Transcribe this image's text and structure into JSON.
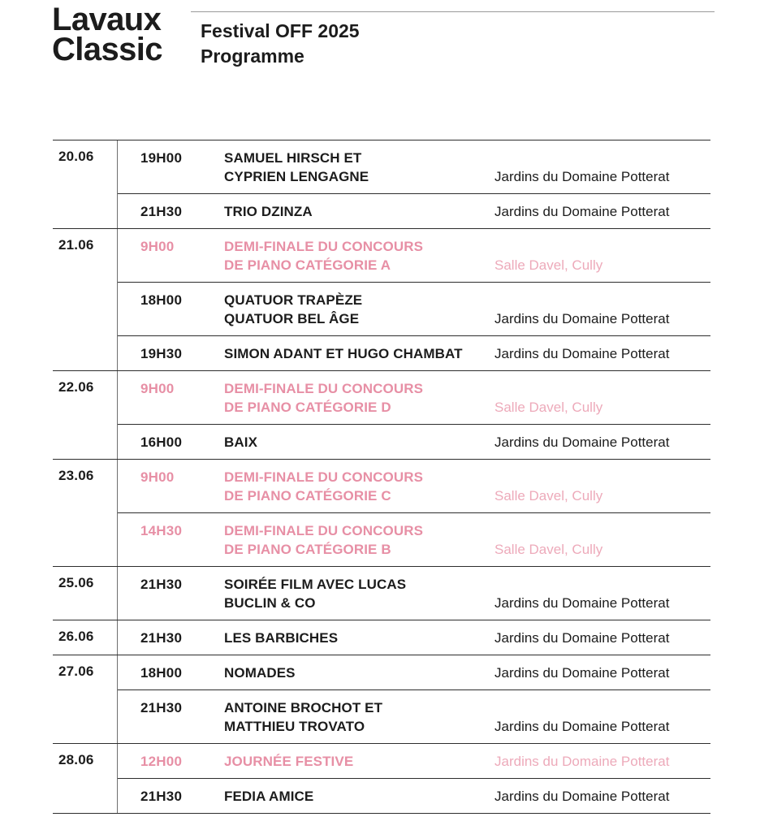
{
  "brand": {
    "logo_line1": "Lavaux",
    "logo_line2": "Classic"
  },
  "header": {
    "title_line1": "Festival OFF 2025",
    "title_line2": "Programme"
  },
  "colors": {
    "text": "#1c1c1c",
    "pink_strong": "#e78fa5",
    "pink_soft": "#edaaba",
    "rule_dark": "#2d2d2d",
    "rule_gray": "#6e6e6e",
    "rule_light": "#9a9a9a"
  },
  "schedule": {
    "groups": [
      {
        "date": "20.06",
        "rows": [
          {
            "time": "19H00",
            "name_lines": [
              "SAMUEL HIRSCH ET",
              "CYPRIEN LENGAGNE"
            ],
            "venue": "Jardins du Domaine Potterat",
            "highlight": false
          },
          {
            "time": "21H30",
            "name_lines": [
              "TRIO DZINZA"
            ],
            "venue": "Jardins du Domaine Potterat",
            "highlight": false
          }
        ]
      },
      {
        "date": "21.06",
        "rows": [
          {
            "time": "9H00",
            "name_lines": [
              "DEMI-FINALE DU CONCOURS",
              "DE PIANO CATÉGORIE A"
            ],
            "venue": "Salle Davel, Cully",
            "highlight": true
          },
          {
            "time": "18H00",
            "name_lines": [
              "QUATUOR TRAPÈZE",
              "QUATUOR BEL ÂGE"
            ],
            "venue": "Jardins du Domaine Potterat",
            "highlight": false
          },
          {
            "time": "19H30",
            "name_lines": [
              "SIMON ADANT ET HUGO CHAMBAT"
            ],
            "venue": "Jardins du Domaine Potterat",
            "highlight": false
          }
        ]
      },
      {
        "date": "22.06",
        "rows": [
          {
            "time": "9H00",
            "name_lines": [
              "DEMI-FINALE DU CONCOURS",
              "DE PIANO CATÉGORIE D"
            ],
            "venue": "Salle Davel, Cully",
            "highlight": true
          },
          {
            "time": "16H00",
            "name_lines": [
              "BAIX"
            ],
            "venue": "Jardins du Domaine Potterat",
            "highlight": false
          }
        ]
      },
      {
        "date": "23.06",
        "rows": [
          {
            "time": "9H00",
            "name_lines": [
              "DEMI-FINALE DU CONCOURS",
              "DE PIANO CATÉGORIE C"
            ],
            "venue": "Salle Davel, Cully",
            "highlight": true
          },
          {
            "time": "14H30",
            "name_lines": [
              "DEMI-FINALE DU CONCOURS",
              "DE PIANO CATÉGORIE B"
            ],
            "venue": "Salle Davel, Cully",
            "highlight": true
          }
        ]
      },
      {
        "date": "25.06",
        "rows": [
          {
            "time": "21H30",
            "name_lines": [
              "SOIRÉE FILM AVEC LUCAS",
              "BUCLIN & CO"
            ],
            "venue": "Jardins du Domaine Potterat",
            "highlight": false
          }
        ]
      },
      {
        "date": "26.06",
        "rows": [
          {
            "time": "21H30",
            "name_lines": [
              "LES BARBICHES"
            ],
            "venue": "Jardins du Domaine Potterat",
            "highlight": false
          }
        ]
      },
      {
        "date": "27.06",
        "rows": [
          {
            "time": "18H00",
            "name_lines": [
              "NOMADES"
            ],
            "venue": "Jardins du Domaine Potterat",
            "highlight": false
          },
          {
            "time": "21H30",
            "name_lines": [
              "ANTOINE BROCHOT ET",
              "MATTHIEU TROVATO"
            ],
            "venue": "Jardins du Domaine Potterat",
            "highlight": false
          }
        ]
      },
      {
        "date": "28.06",
        "rows": [
          {
            "time": "12H00",
            "name_lines": [
              "JOURNÉE FESTIVE"
            ],
            "venue": "Jardins du Domaine Potterat",
            "highlight": true
          },
          {
            "time": "21H30",
            "name_lines": [
              "FEDIA AMICE"
            ],
            "venue": "Jardins du Domaine Potterat",
            "highlight": false
          }
        ]
      }
    ]
  }
}
